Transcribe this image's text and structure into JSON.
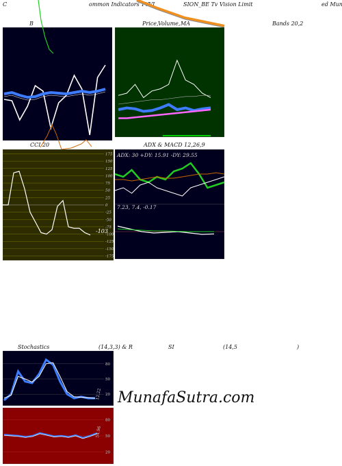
{
  "header": {
    "c1": "C",
    "c2": "ommon  Indicators TVVI",
    "c3": "SION_BE  Tv  Vision Limit",
    "c4": "ed MunafaS"
  },
  "row1": {
    "bb_title": "B",
    "price_title": "Price,",
    "price_title2": "Volume,",
    "price_title3": "MA",
    "bands_title": "Bands 20,2"
  },
  "row2": {
    "cci_title": "CCI 20",
    "adx_title": "ADX  & MACD 12,26,9",
    "adx_values": "ADX: 30   +DY: 15.91 -DY: 29.55",
    "macd_values": "7.23,  7.4,  -0.17",
    "cci_ticks": [
      "175",
      "150",
      "125",
      "100",
      "75",
      "50",
      "25",
      "0",
      "-25",
      "-50",
      "-75",
      "-100",
      "-125",
      "-150",
      "-175"
    ],
    "cci_last": "-103"
  },
  "row3": {
    "stoch_title": "Stochastics",
    "stoch_params": "(14,3,3) & R",
    "rsi_title": "SI",
    "rsi_params": "(14,5",
    "rsi_close": ")",
    "stoch_ticks": [
      "80",
      "50",
      "20"
    ],
    "stoch_last": "12.22",
    "rsi_ticks": [
      "80",
      "50",
      "20"
    ],
    "rsi_last": "54.96"
  },
  "watermark": "MunafaSutra.com",
  "colors": {
    "dark_bg": "#00001e",
    "green_bg": "#003300",
    "cci_bg": "#2c2c00",
    "rsi_bg": "#8b0000",
    "blue": "#3d7cff",
    "orange": "#cc6600",
    "green": "#22cc22"
  },
  "chart_data": [
    {
      "type": "line",
      "panel": "bollinger-bands",
      "series": [
        {
          "values": [
            60,
            58,
            30,
            50,
            80,
            72,
            18,
            55,
            66,
            95,
            75,
            8,
            92,
            110
          ]
        },
        {
          "values": [
            68,
            70,
            66,
            63,
            64,
            68,
            70,
            69,
            68,
            70,
            72,
            70,
            72,
            75
          ]
        }
      ]
    },
    {
      "type": "line",
      "panel": "price-volume-ma",
      "series": [
        {
          "values": [
            32,
            34,
            33,
            30,
            31,
            34,
            38,
            32,
            34,
            31,
            33,
            34
          ]
        },
        {
          "values": [
            22,
            22,
            23,
            24,
            25,
            26,
            27,
            28,
            29,
            30,
            31,
            32
          ]
        }
      ]
    },
    {
      "type": "line",
      "panel": "cci",
      "ylim": [
        -175,
        175
      ],
      "series": [
        {
          "values": [
            0,
            0,
            110,
            115,
            55,
            -25,
            -60,
            -95,
            -100,
            -85,
            -5,
            15,
            -75,
            -80,
            -80,
            -95,
            -103
          ]
        }
      ]
    },
    {
      "type": "line",
      "panel": "adx",
      "series": [
        {
          "values": [
            22,
            20,
            25,
            18,
            16,
            20,
            18,
            24,
            26,
            30,
            22,
            12,
            14,
            16
          ]
        },
        {
          "values": [
            10,
            12,
            8,
            14,
            16,
            12,
            10,
            8,
            6,
            12,
            14,
            16,
            18,
            20
          ]
        },
        {
          "values": [
            18,
            18,
            17,
            18,
            19,
            20,
            19,
            19,
            20,
            21,
            22,
            22,
            23,
            22
          ]
        }
      ]
    },
    {
      "type": "line",
      "panel": "macd",
      "series": [
        {
          "values": [
            7.8,
            7.6,
            7.4,
            7.3,
            7.35,
            7.4,
            7.3,
            7.2,
            7.23
          ]
        },
        {
          "values": [
            7.6,
            7.55,
            7.5,
            7.45,
            7.45,
            7.42,
            7.4,
            7.4,
            7.4
          ]
        }
      ]
    },
    {
      "type": "line",
      "panel": "stochastics",
      "ylim": [
        0,
        100
      ],
      "series": [
        {
          "values": [
            8,
            20,
            65,
            45,
            42,
            60,
            88,
            78,
            45,
            20,
            12,
            15,
            12,
            12
          ]
        },
        {
          "values": [
            12,
            18,
            55,
            50,
            44,
            55,
            80,
            82,
            55,
            25,
            15,
            14,
            13,
            12
          ]
        }
      ]
    },
    {
      "type": "line",
      "panel": "rsi",
      "ylim": [
        0,
        100
      ],
      "series": [
        {
          "values": [
            52,
            51,
            50,
            48,
            50,
            55,
            52,
            49,
            50,
            48,
            51,
            46,
            50,
            55
          ]
        }
      ]
    }
  ]
}
